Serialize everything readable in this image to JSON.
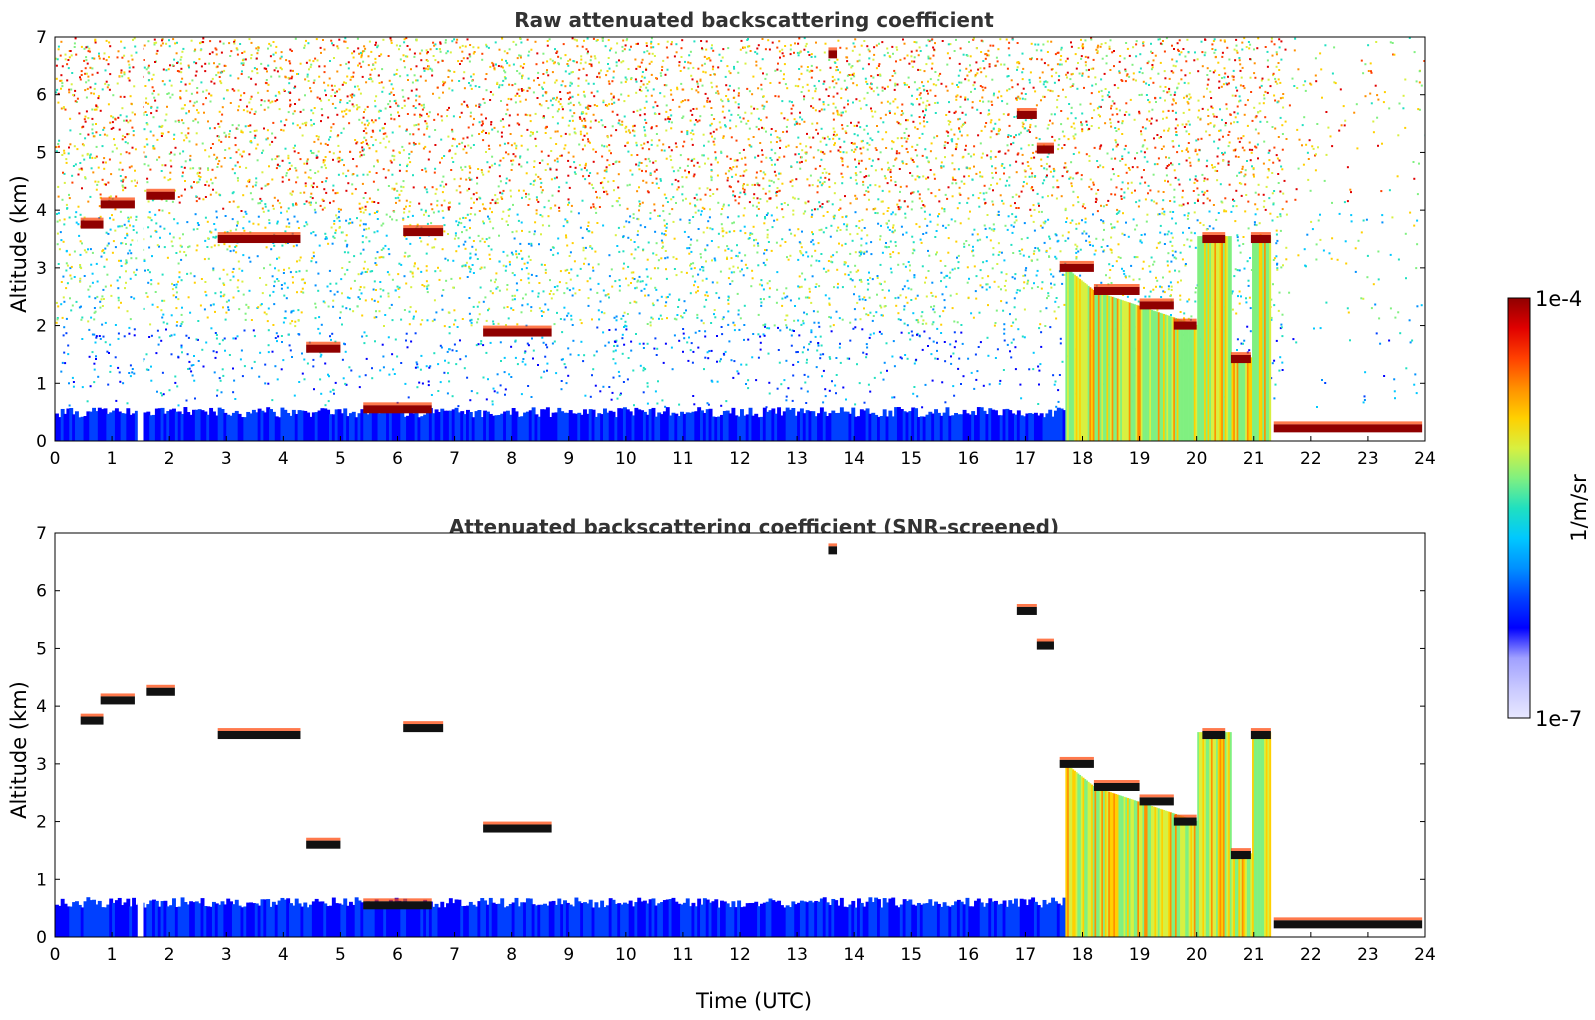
{
  "figure": {
    "xlabel": "Time (UTC)",
    "colorbar": {
      "label": "1/m/sr",
      "max_label": "1e-4",
      "min_label": "1e-7",
      "scale": "log",
      "range": [
        1e-07,
        0.0001
      ],
      "colormap": [
        "#e8e8ff",
        "#c8c8ff",
        "#a0a0ff",
        "#0000ff",
        "#0040ff",
        "#0090ff",
        "#00c8ff",
        "#20e0c0",
        "#80f080",
        "#d8f040",
        "#ffd000",
        "#ff9000",
        "#ff4000",
        "#e00000",
        "#900000"
      ]
    }
  },
  "chart_data": [
    {
      "type": "heatmap",
      "title": "Raw attenuated backscattering coefficient",
      "ylabel": "Altitude (km)",
      "xlim": [
        0,
        24
      ],
      "ylim": [
        0,
        7
      ],
      "xticks": [
        0,
        1,
        2,
        3,
        4,
        5,
        6,
        7,
        8,
        9,
        10,
        11,
        12,
        13,
        14,
        15,
        16,
        17,
        18,
        19,
        20,
        21,
        22,
        23,
        24
      ],
      "yticks": [
        0,
        1,
        2,
        3,
        4,
        5,
        6,
        7
      ],
      "data_gap": [
        1.45,
        1.55
      ],
      "boundary_layer_top_km": 0.5,
      "aerosol_column": {
        "start": 17.7,
        "end": 21.3
      },
      "cloud_layers": [
        {
          "start": 0.45,
          "end": 0.85,
          "alt": 3.75
        },
        {
          "start": 0.8,
          "end": 1.4,
          "alt": 4.1
        },
        {
          "start": 1.6,
          "end": 2.1,
          "alt": 4.25
        },
        {
          "start": 2.85,
          "end": 4.3,
          "alt": 3.5
        },
        {
          "start": 4.4,
          "end": 5.0,
          "alt": 1.6
        },
        {
          "start": 5.4,
          "end": 6.6,
          "alt": 0.55
        },
        {
          "start": 6.1,
          "end": 6.8,
          "alt": 3.62
        },
        {
          "start": 7.5,
          "end": 8.7,
          "alt": 1.88
        },
        {
          "start": 13.55,
          "end": 13.7,
          "alt": 6.7
        },
        {
          "start": 16.85,
          "end": 17.2,
          "alt": 5.65
        },
        {
          "start": 17.2,
          "end": 17.5,
          "alt": 5.05
        },
        {
          "start": 17.6,
          "end": 18.2,
          "alt": 3.0
        },
        {
          "start": 18.2,
          "end": 19.0,
          "alt": 2.6
        },
        {
          "start": 19.0,
          "end": 19.6,
          "alt": 2.35
        },
        {
          "start": 19.6,
          "end": 20.0,
          "alt": 2.0
        },
        {
          "start": 20.1,
          "end": 20.5,
          "alt": 3.5
        },
        {
          "start": 20.6,
          "end": 20.95,
          "alt": 1.42
        },
        {
          "start": 20.95,
          "end": 21.3,
          "alt": 3.5
        },
        {
          "start": 21.35,
          "end": 23.95,
          "alt": 0.22
        }
      ]
    },
    {
      "type": "heatmap",
      "title": "Attenuated backscattering coefficient (SNR-screened)",
      "ylabel": "Altitude (km)",
      "xlabel": "Time (UTC)",
      "xlim": [
        0,
        24
      ],
      "ylim": [
        0,
        7
      ],
      "xticks": [
        0,
        1,
        2,
        3,
        4,
        5,
        6,
        7,
        8,
        9,
        10,
        11,
        12,
        13,
        14,
        15,
        16,
        17,
        18,
        19,
        20,
        21,
        22,
        23,
        24
      ],
      "yticks": [
        0,
        1,
        2,
        3,
        4,
        5,
        6,
        7
      ],
      "data_gap": [
        1.45,
        1.55
      ],
      "boundary_layer_top_km": 0.6,
      "aerosol_column": {
        "start": 17.7,
        "end": 21.3
      },
      "cloud_layers": [
        {
          "start": 0.45,
          "end": 0.85,
          "alt": 3.75
        },
        {
          "start": 0.8,
          "end": 1.4,
          "alt": 4.1
        },
        {
          "start": 1.6,
          "end": 2.1,
          "alt": 4.25
        },
        {
          "start": 2.85,
          "end": 4.3,
          "alt": 3.5
        },
        {
          "start": 4.4,
          "end": 5.0,
          "alt": 1.6
        },
        {
          "start": 5.4,
          "end": 6.6,
          "alt": 0.55
        },
        {
          "start": 6.1,
          "end": 6.8,
          "alt": 3.62
        },
        {
          "start": 7.5,
          "end": 8.7,
          "alt": 1.88
        },
        {
          "start": 13.55,
          "end": 13.7,
          "alt": 6.7
        },
        {
          "start": 16.85,
          "end": 17.2,
          "alt": 5.65
        },
        {
          "start": 17.2,
          "end": 17.5,
          "alt": 5.05
        },
        {
          "start": 17.6,
          "end": 18.2,
          "alt": 3.0
        },
        {
          "start": 18.2,
          "end": 19.0,
          "alt": 2.6
        },
        {
          "start": 19.0,
          "end": 19.6,
          "alt": 2.35
        },
        {
          "start": 19.6,
          "end": 20.0,
          "alt": 2.0
        },
        {
          "start": 20.1,
          "end": 20.5,
          "alt": 3.5
        },
        {
          "start": 20.6,
          "end": 20.95,
          "alt": 1.42
        },
        {
          "start": 20.95,
          "end": 21.3,
          "alt": 3.5
        },
        {
          "start": 21.35,
          "end": 23.95,
          "alt": 0.22
        }
      ]
    }
  ]
}
